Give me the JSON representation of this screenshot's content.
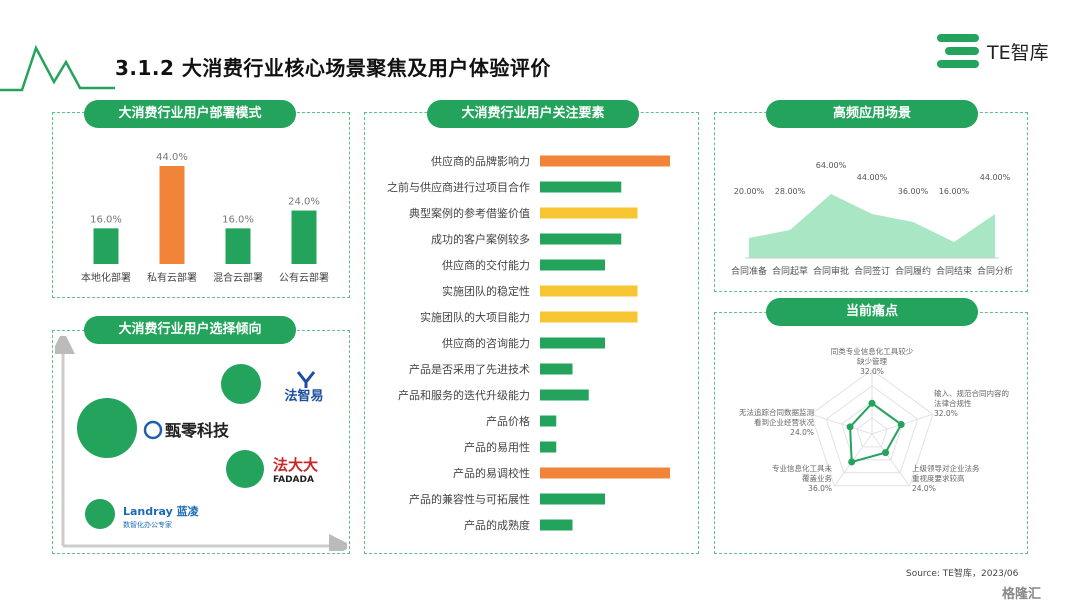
{
  "header": {
    "title": "3.1.2 大消费行业核心场景聚焦及用户体验评价",
    "brand": "TE智库"
  },
  "colors": {
    "green": "#23a35b",
    "orange": "#f2843a",
    "yellow": "#f7c531",
    "area": "#a8e6c4",
    "pill": "#23a35b"
  },
  "panels": {
    "deployment": "大消费行业用户部署模式",
    "preference": "大消费行业用户选择倾向",
    "factors": "大消费行业用户关注要素",
    "scenarios": "高频应用场景",
    "pain_points": "当前痛点"
  },
  "chart_data": [
    {
      "type": "bar",
      "id": "deployment",
      "categories": [
        "本地化部署",
        "私有云部署",
        "混合云部署",
        "公有云部署"
      ],
      "values": [
        16.0,
        44.0,
        16.0,
        24.0
      ],
      "labels": [
        "16.0%",
        "44.0%",
        "16.0%",
        "24.0%"
      ],
      "highlight": [
        1
      ],
      "ylim": [
        0,
        44
      ]
    },
    {
      "type": "bar",
      "id": "factors",
      "orientation": "horizontal",
      "categories": [
        "供应商的品牌影响力",
        "之前与供应商进行过项目合作",
        "典型案例的参考借鉴价值",
        "成功的客户案例较多",
        "供应商的交付能力",
        "实施团队的稳定性",
        "实施团队的大项目能力",
        "供应商的咨询能力",
        "产品是否采用了先进技术",
        "产品和服务的迭代升级能力",
        "产品价格",
        "产品的易用性",
        "产品的易调校性",
        "产品的兼容性与可拓展性",
        "产品的成熟度"
      ],
      "values": [
        64,
        40,
        48,
        40,
        32,
        48,
        48,
        32,
        16,
        24,
        8,
        8,
        64,
        32,
        16
      ],
      "colors": [
        "orange",
        "green",
        "yellow",
        "green",
        "green",
        "yellow",
        "yellow",
        "green",
        "green",
        "green",
        "green",
        "green",
        "orange",
        "green",
        "green"
      ]
    },
    {
      "type": "area",
      "id": "scenarios",
      "categories": [
        "合同准备",
        "合同起草",
        "合同审批",
        "合同签订",
        "合同履约",
        "合同结束",
        "合同分析"
      ],
      "values": [
        20.0,
        28.0,
        64.0,
        44.0,
        36.0,
        16.0,
        44.0
      ],
      "labels": [
        "20.00%",
        "28.00%",
        "64.00%",
        "44.00%",
        "36.00%",
        "16.00%",
        "44.00%"
      ],
      "ylim": [
        0,
        80
      ]
    },
    {
      "type": "radar",
      "id": "pain_points",
      "axes": [
        {
          "label": [
            "同类专业信息化工具较少",
            "缺少管理"
          ],
          "value": 32.0,
          "value_label": "32.0%"
        },
        {
          "label": [
            "输入、规范合同内容的",
            "法律合规性"
          ],
          "value": 32.0,
          "value_label": "32.0%"
        },
        {
          "label": [
            "上级领导对企业法务",
            "重视度要求较高"
          ],
          "value": 24.0,
          "value_label": "24.0%"
        },
        {
          "label": [
            "专业信息化工具未",
            "覆盖业务"
          ],
          "value": 36.0,
          "value_label": "36.0%"
        },
        {
          "label": [
            "无法追踪合同数据监测",
            "看到企业经营状况"
          ],
          "value": 24.0,
          "value_label": "24.0%"
        }
      ],
      "max": 40
    }
  ],
  "preference": {
    "vendors": [
      {
        "name": "法智易",
        "size": 22
      },
      {
        "name": "甄零科技",
        "size": 38
      },
      {
        "name": "法大大",
        "sub": "FADADA",
        "size": 20
      },
      {
        "name": "Landray 蓝凌",
        "sub": "数智化办公专家",
        "size": 16
      }
    ]
  },
  "footer": {
    "source": "Source: TE智库，2023/06",
    "watermark": "格隆汇"
  }
}
